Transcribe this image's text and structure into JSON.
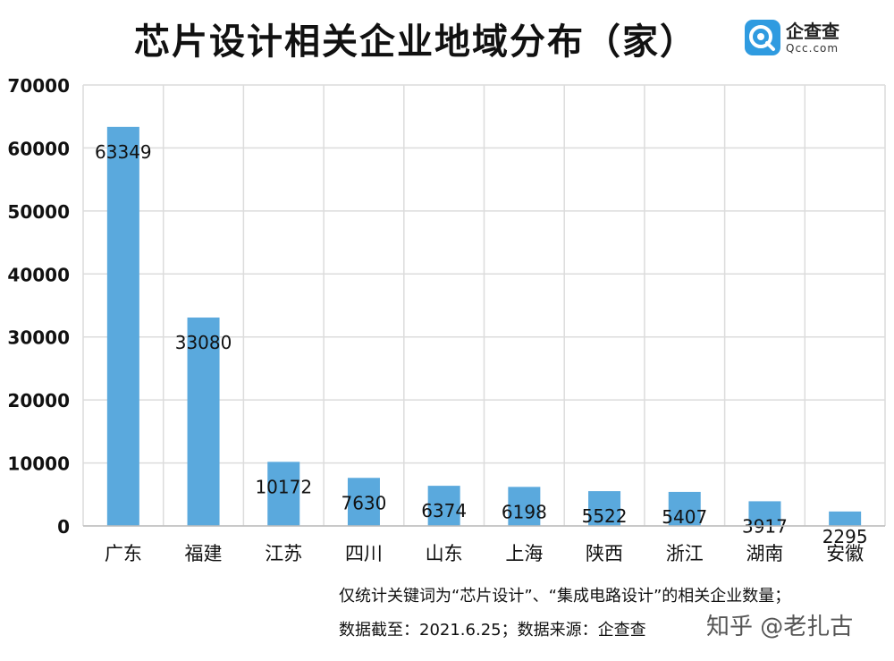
{
  "title": "芯片设计相关企业地域分布（家）",
  "logo": {
    "name": "企查查",
    "domain": "Qcc.com",
    "color": "#2f9be0"
  },
  "notes": [
    "仅统计关键词为“芯片设计”、“集成电路设计”的相关企业数量；",
    "数据截至：2021.6.25；数据来源：企查查"
  ],
  "watermark": "知乎 @老扎古",
  "chart_data": {
    "type": "bar",
    "categories": [
      "广东",
      "福建",
      "江苏",
      "四川",
      "山东",
      "上海",
      "陕西",
      "浙江",
      "湖南",
      "安徽"
    ],
    "values": [
      63349,
      33080,
      10172,
      7630,
      6374,
      6198,
      5522,
      5407,
      3917,
      2295
    ],
    "ylim": [
      0,
      70000
    ],
    "yticks": [
      0,
      10000,
      20000,
      30000,
      40000,
      50000,
      60000,
      70000
    ],
    "bar_color": "#5aa9dd",
    "grid": true,
    "data_labels": true,
    "title": "",
    "xlabel": "",
    "ylabel": ""
  }
}
